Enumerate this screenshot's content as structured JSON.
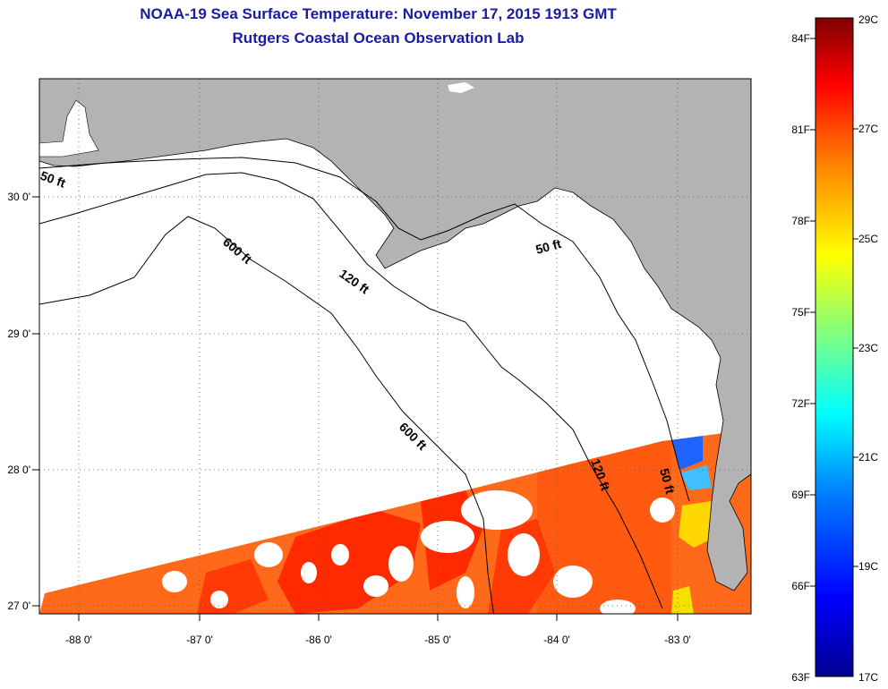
{
  "header": {
    "title": "NOAA-19 Sea Surface Temperature:  November 17, 2015 1913 GMT",
    "subtitle": "Rutgers Coastal Ocean Observation Lab"
  },
  "map": {
    "lon_range": [
      -88.35,
      -82.45
    ],
    "lat_range": [
      26.93,
      30.85
    ],
    "lon_ticks": [
      {
        "value": -88,
        "label": "-88 0'"
      },
      {
        "value": -87,
        "label": "-87 0'"
      },
      {
        "value": -86,
        "label": "-86 0'"
      },
      {
        "value": -85,
        "label": "-85 0'"
      },
      {
        "value": -84,
        "label": "-84 0'"
      },
      {
        "value": -83,
        "label": "-83 0'"
      }
    ],
    "lat_ticks": [
      {
        "value": 30,
        "label": "30 0'"
      },
      {
        "value": 29,
        "label": "29 0'"
      },
      {
        "value": 28,
        "label": "28 0'"
      },
      {
        "value": 27,
        "label": "27 0'"
      }
    ],
    "contours": [
      {
        "label": "50 ft",
        "color": "#000000"
      },
      {
        "label": "50 ft",
        "color": "#000000"
      },
      {
        "label": "50 ft",
        "color": "#000000"
      },
      {
        "label": "120 ft",
        "color": "#000000"
      },
      {
        "label": "120 ft",
        "color": "#000000"
      },
      {
        "label": "600 ft",
        "color": "#000000"
      },
      {
        "label": "600 ft",
        "color": "#000000"
      }
    ],
    "land_color": "#b3b3b3",
    "cloud_color": "#ffffff",
    "sst_colors": [
      "#ff2a00",
      "#ff5a10",
      "#ff6a1a",
      "#ffd700",
      "#1f64ff"
    ],
    "grid": true
  },
  "colorbar": {
    "celsius_labels": [
      "29C",
      "27C",
      "25C",
      "23C",
      "21C",
      "19C",
      "17C"
    ],
    "fahrenheit_labels": [
      "84F",
      "81F",
      "78F",
      "75F",
      "72F",
      "69F",
      "66F",
      "63F"
    ],
    "range_c": [
      17,
      29
    ],
    "range_f": [
      63,
      84
    ],
    "colors": [
      "#7f0000",
      "#ff0000",
      "#ff8000",
      "#ffff00",
      "#80ff80",
      "#00ffff",
      "#0080ff",
      "#0000ff",
      "#00008f"
    ]
  }
}
